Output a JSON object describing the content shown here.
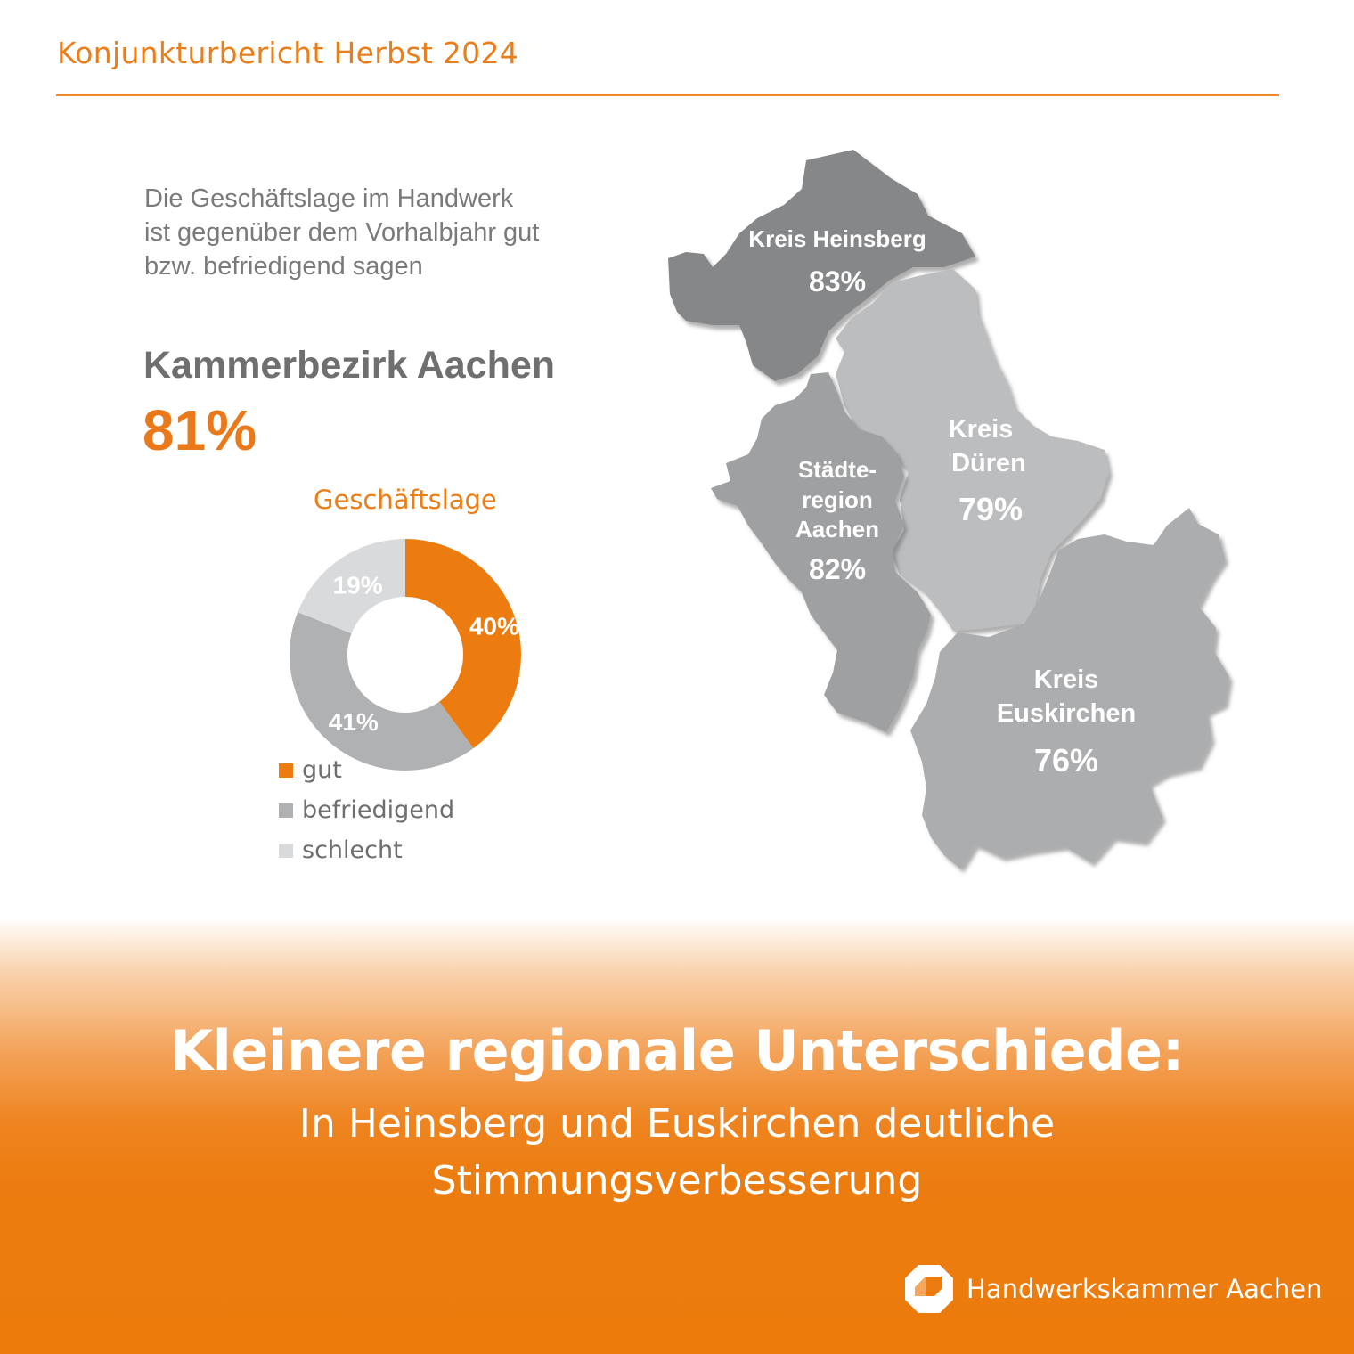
{
  "header": {
    "title": "Konjunkturbericht Herbst 2024"
  },
  "intro": {
    "lines": [
      "Die Geschäftslage im Handwerk",
      "ist gegenüber dem Vorhalbjahr gut",
      "bzw. befriedigend sagen"
    ]
  },
  "summary": {
    "region": "Kammerbezirk Aachen",
    "value": "81%"
  },
  "colors": {
    "accent": "#ec7c0f",
    "gut": "#ec7c0f",
    "befriedigend": "#b0b1b3",
    "schlecht": "#d9dadb"
  },
  "chart_data": [
    {
      "type": "pie",
      "title": "Geschäftslage",
      "categories": [
        "gut",
        "befriedigend",
        "schlecht"
      ],
      "values": [
        40,
        41,
        19
      ],
      "value_labels": [
        "40%",
        "41%",
        "19%"
      ],
      "unit": "%",
      "donut": true,
      "legend": "bottom-left"
    }
  ],
  "map": {
    "regions": [
      {
        "name_lines": [
          "Kreis Heinsberg"
        ],
        "value": "83%"
      },
      {
        "name_lines": [
          "Kreis",
          "Düren"
        ],
        "value": "79%"
      },
      {
        "name_lines": [
          "Städte-",
          "region",
          "Aachen"
        ],
        "value": "82%"
      },
      {
        "name_lines": [
          "Kreis",
          "Euskirchen"
        ],
        "value": "76%"
      }
    ]
  },
  "banner": {
    "headline": "Kleinere regionale Unterschiede:",
    "sub_lines": [
      "In Heinsberg und Euskirchen deutliche",
      "Stimmungsverbesserung"
    ]
  },
  "logo": {
    "name": "Handwerkskammer Aachen",
    "icon": "hwk-logo-icon"
  }
}
